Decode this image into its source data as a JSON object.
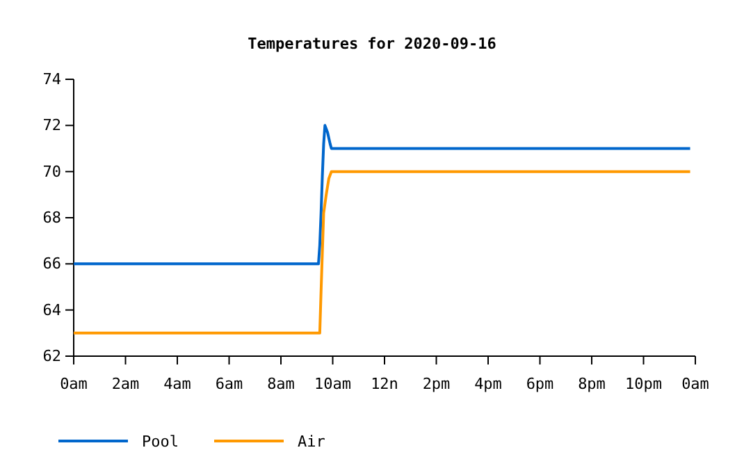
{
  "chart_data": {
    "type": "line",
    "title": "Temperatures for 2020-09-16",
    "xlim": [
      "2020-09-16T00:00",
      "2020-09-17T00:00"
    ],
    "xticks": [
      {
        "value": "2020-09-16T00:00",
        "label": "0am"
      },
      {
        "value": "2020-09-16T02:00",
        "label": "2am"
      },
      {
        "value": "2020-09-16T04:00",
        "label": "4am"
      },
      {
        "value": "2020-09-16T06:00",
        "label": "6am"
      },
      {
        "value": "2020-09-16T08:00",
        "label": "8am"
      },
      {
        "value": "2020-09-16T10:00",
        "label": "10am"
      },
      {
        "value": "2020-09-16T12:00",
        "label": "12n"
      },
      {
        "value": "2020-09-16T14:00",
        "label": "2pm"
      },
      {
        "value": "2020-09-16T16:00",
        "label": "4pm"
      },
      {
        "value": "2020-09-16T18:00",
        "label": "6pm"
      },
      {
        "value": "2020-09-16T20:00",
        "label": "8pm"
      },
      {
        "value": "2020-09-16T22:00",
        "label": "10pm"
      },
      {
        "value": "2020-09-17T00:00",
        "label": "0am"
      }
    ],
    "ylim": [
      62,
      74
    ],
    "yticks": [
      62,
      64,
      66,
      68,
      70,
      72,
      74
    ],
    "grid": false,
    "legend": "bottom left",
    "series": [
      {
        "name": "Pool",
        "color": "#0066cc",
        "x": [
          "2020-09-16T00:00",
          "2020-09-16T09:27",
          "2020-09-16T09:30",
          "2020-09-16T09:33",
          "2020-09-16T09:36",
          "2020-09-16T09:39",
          "2020-09-16T09:42",
          "2020-09-16T09:48",
          "2020-09-16T09:54",
          "2020-09-16T09:57",
          "2020-09-16T23:48"
        ],
        "values": [
          66,
          66,
          66.8,
          68.2,
          69.8,
          71.2,
          72,
          71.7,
          71.2,
          71,
          71
        ]
      },
      {
        "name": "Air",
        "color": "#ff9900",
        "x": [
          "2020-09-16T00:00",
          "2020-09-16T09:30",
          "2020-09-16T09:33",
          "2020-09-16T09:36",
          "2020-09-16T09:39",
          "2020-09-16T09:45",
          "2020-09-16T09:51",
          "2020-09-16T09:57",
          "2020-09-16T23:48"
        ],
        "values": [
          63,
          63,
          64.8,
          66.5,
          68.2,
          69,
          69.7,
          70,
          70
        ]
      }
    ]
  }
}
